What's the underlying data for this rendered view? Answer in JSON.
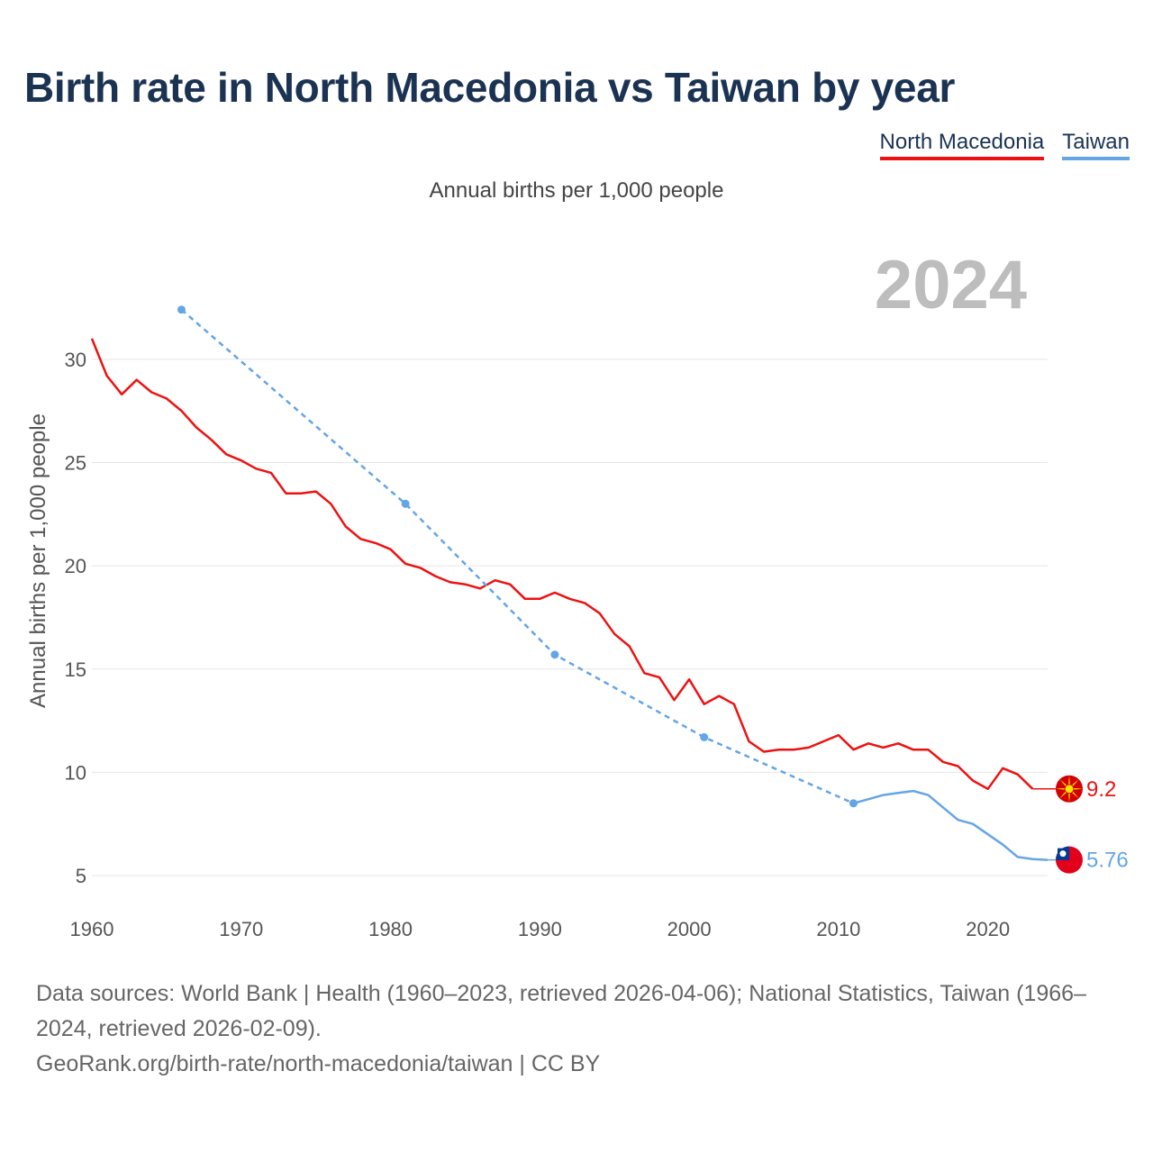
{
  "title": "Birth rate in North Macedonia vs Taiwan by year",
  "subtitle": "Annual births per 1,000 people",
  "legend": [
    {
      "label": "North Macedonia",
      "color": "#ee1111"
    },
    {
      "label": "Taiwan",
      "color": "#64a5e6"
    }
  ],
  "year_label": "2024",
  "footer": {
    "sources": "Data sources: World Bank | Health (1960–2023, retrieved 2026-04-06); National Statistics, Taiwan (1966–2024, retrieved 2026-02-09).",
    "credit": "GeoRank.org/birth-rate/north-macedonia/taiwan | CC BY"
  },
  "chart_data": {
    "type": "line",
    "title": "Birth rate in North Macedonia vs Taiwan by year",
    "ylabel": "Annual births per 1,000 people",
    "xlabel": "",
    "xlim": [
      1960,
      2024
    ],
    "ylim": [
      4,
      33
    ],
    "xticks": [
      1960,
      1970,
      1980,
      1990,
      2000,
      2010,
      2020
    ],
    "yticks": [
      5,
      10,
      15,
      20,
      25,
      30
    ],
    "grid": true,
    "series": [
      {
        "name": "North Macedonia",
        "color": "#ee1111",
        "end_label": "9.2",
        "end_year": 2025,
        "x": [
          1960,
          1961,
          1962,
          1963,
          1964,
          1965,
          1966,
          1967,
          1968,
          1969,
          1970,
          1971,
          1972,
          1973,
          1974,
          1975,
          1976,
          1977,
          1978,
          1979,
          1980,
          1981,
          1982,
          1983,
          1984,
          1985,
          1986,
          1987,
          1988,
          1989,
          1990,
          1991,
          1992,
          1993,
          1994,
          1995,
          1996,
          1997,
          1998,
          1999,
          2000,
          2001,
          2002,
          2003,
          2004,
          2005,
          2006,
          2007,
          2008,
          2009,
          2010,
          2011,
          2012,
          2013,
          2014,
          2015,
          2016,
          2017,
          2018,
          2019,
          2020,
          2021,
          2022,
          2023
        ],
        "values": [
          31.0,
          29.2,
          28.3,
          29.0,
          28.4,
          28.1,
          27.5,
          26.7,
          26.1,
          25.4,
          25.1,
          24.7,
          24.5,
          23.5,
          23.5,
          23.6,
          23.0,
          21.9,
          21.3,
          21.1,
          20.8,
          20.1,
          19.9,
          19.5,
          19.2,
          19.1,
          18.9,
          19.3,
          19.1,
          18.4,
          18.4,
          18.7,
          18.4,
          18.2,
          17.7,
          16.7,
          16.1,
          14.8,
          14.6,
          13.5,
          14.5,
          13.3,
          13.7,
          13.3,
          11.5,
          11.0,
          11.1,
          11.1,
          11.2,
          11.5,
          11.8,
          11.1,
          11.4,
          11.2,
          11.4,
          11.1,
          11.1,
          10.5,
          10.3,
          9.6,
          9.2,
          10.2,
          9.9,
          9.2
        ]
      },
      {
        "name": "Taiwan",
        "color": "#64a5e6",
        "end_label": "5.76",
        "end_year": 2025,
        "sparse_points": [
          {
            "x": 1966,
            "y": 32.4
          },
          {
            "x": 1981,
            "y": 23.0
          },
          {
            "x": 1991,
            "y": 15.7
          },
          {
            "x": 2001,
            "y": 11.7
          },
          {
            "x": 2011,
            "y": 8.5
          }
        ],
        "x": [
          2011,
          2012,
          2013,
          2014,
          2015,
          2016,
          2017,
          2018,
          2019,
          2020,
          2021,
          2022,
          2023,
          2024
        ],
        "values": [
          8.5,
          8.7,
          8.9,
          9.0,
          9.1,
          8.9,
          8.3,
          7.7,
          7.5,
          7.0,
          6.5,
          5.9,
          5.8,
          5.76
        ]
      }
    ]
  }
}
